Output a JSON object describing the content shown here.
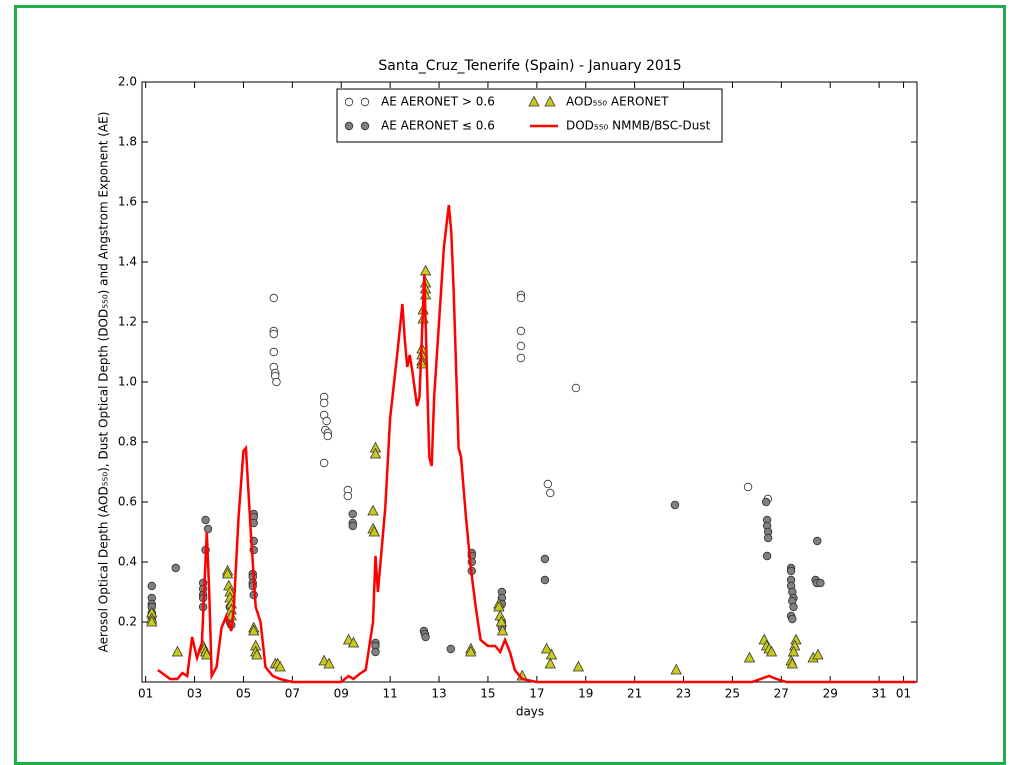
{
  "chart_data": {
    "type": "scatter",
    "title": "Santa_Cruz_Tenerife (Spain) - January 2015",
    "x_label": "days",
    "y_label": "Aerosol Optical Depth (AOD₅₅₀), Dust Optical Depth (DOD₅₅₀) and Angstrom Exponent (AE)",
    "xlim": [
      0.85,
      32.55
    ],
    "ylim": [
      0,
      2
    ],
    "xticks": [
      {
        "value": 1,
        "label": "01"
      },
      {
        "value": 3,
        "label": "03"
      },
      {
        "value": 5,
        "label": "05"
      },
      {
        "value": 7,
        "label": "07"
      },
      {
        "value": 9,
        "label": "09"
      },
      11,
      13,
      15,
      17,
      19,
      21,
      23,
      25,
      27,
      29,
      31,
      {
        "value": 32,
        "label": "01"
      }
    ],
    "yticks": [
      0.2,
      0.4,
      0.6,
      0.8,
      {
        "value": 1,
        "label": "1.0"
      },
      1.2,
      1.4,
      1.6,
      1.8,
      {
        "value": 2,
        "label": "2.0"
      }
    ],
    "legend": "upper center",
    "series": [
      {
        "name": "AE AERONET  > 0.6",
        "type": "scatter",
        "marker": "circle",
        "color": "#ffffff",
        "x": [
          6.24,
          6.24,
          6.24,
          6.24,
          6.24,
          6.3,
          6.3,
          6.35,
          8.3,
          8.3,
          8.3,
          8.4,
          8.35,
          8.45,
          8.45,
          8.3,
          9.27,
          9.27,
          16.35,
          16.35,
          16.35,
          16.35,
          16.35,
          17.45,
          17.55,
          18.6,
          25.64,
          26.45
        ],
        "values": [
          1.28,
          1.17,
          1.16,
          1.1,
          1.05,
          1.03,
          1.02,
          1.0,
          0.95,
          0.93,
          0.89,
          0.87,
          0.84,
          0.83,
          0.82,
          0.73,
          0.64,
          0.62,
          1.29,
          1.28,
          1.17,
          1.12,
          1.08,
          0.66,
          0.63,
          0.98,
          0.65,
          0.61
        ]
      },
      {
        "name": "AE AERONET  ≤ 0.6",
        "type": "scatter",
        "marker": "circle",
        "color": "#808080",
        "x": [
          1.25,
          1.25,
          1.25,
          1.25,
          1.25,
          1.25,
          1.25,
          2.23,
          3.35,
          3.35,
          3.35,
          3.35,
          3.35,
          3.45,
          3.45,
          3.55,
          4.44,
          4.44,
          4.5,
          5.42,
          5.42,
          5.42,
          5.42,
          5.42,
          5.38,
          5.38,
          5.38,
          5.38,
          5.42,
          9.47,
          9.47,
          9.47,
          10.4,
          10.4,
          10.4,
          12.38,
          12.42,
          12.45,
          13.48,
          14.34,
          14.34,
          14.34,
          14.34,
          15.57,
          15.57,
          15.57,
          15.57,
          15.57,
          17.33,
          17.33,
          22.65,
          26.38,
          26.42,
          26.42,
          26.46,
          26.46,
          26.42,
          27.4,
          27.4,
          27.4,
          27.4,
          27.45,
          27.5,
          27.45,
          27.5,
          27.4,
          27.45,
          28.47,
          28.4,
          28.45,
          28.6
        ],
        "values": [
          0.32,
          0.28,
          0.26,
          0.25,
          0.23,
          0.22,
          0.21,
          0.38,
          0.33,
          0.31,
          0.29,
          0.28,
          0.25,
          0.54,
          0.44,
          0.51,
          0.25,
          0.2,
          0.19,
          0.56,
          0.55,
          0.53,
          0.47,
          0.44,
          0.36,
          0.35,
          0.33,
          0.32,
          0.29,
          0.56,
          0.53,
          0.52,
          0.13,
          0.12,
          0.1,
          0.17,
          0.16,
          0.15,
          0.11,
          0.43,
          0.42,
          0.4,
          0.37,
          0.3,
          0.28,
          0.26,
          0.2,
          0.18,
          0.41,
          0.34,
          0.59,
          0.6,
          0.54,
          0.52,
          0.5,
          0.48,
          0.42,
          0.38,
          0.37,
          0.34,
          0.32,
          0.3,
          0.28,
          0.27,
          0.25,
          0.22,
          0.21,
          0.47,
          0.34,
          0.33,
          0.33
        ]
      },
      {
        "name": "AOD₅₅₀ AERONET",
        "type": "scatter",
        "marker": "triangle",
        "color": "#c8c81e",
        "x": [
          1.25,
          1.25,
          1.25,
          2.3,
          3.35,
          3.4,
          3.45,
          3.5,
          4.35,
          4.35,
          4.4,
          4.45,
          4.45,
          4.5,
          4.5,
          4.5,
          5.42,
          5.42,
          5.5,
          5.5,
          5.55,
          6.3,
          6.4,
          6.5,
          8.3,
          8.5,
          9.3,
          9.5,
          10.4,
          10.4,
          10.3,
          10.3,
          10.35,
          12.45,
          12.45,
          12.45,
          12.45,
          12.35,
          12.35,
          12.3,
          12.3,
          12.3,
          12.3,
          14.3,
          14.3,
          15.45,
          15.45,
          15.5,
          15.55,
          15.6,
          16.4,
          17.4,
          17.6,
          17.55,
          18.7,
          22.7,
          25.7,
          26.3,
          26.4,
          26.5,
          26.6,
          27.6,
          27.55,
          27.5,
          27.4,
          27.45,
          28.3,
          28.5
        ],
        "values": [
          0.23,
          0.21,
          0.2,
          0.1,
          0.12,
          0.11,
          0.1,
          0.09,
          0.37,
          0.36,
          0.32,
          0.3,
          0.28,
          0.26,
          0.24,
          0.22,
          0.18,
          0.17,
          0.12,
          0.1,
          0.09,
          0.06,
          0.06,
          0.05,
          0.07,
          0.06,
          0.14,
          0.13,
          0.78,
          0.76,
          0.57,
          0.51,
          0.5,
          1.37,
          1.33,
          1.31,
          1.29,
          1.24,
          1.21,
          1.11,
          1.09,
          1.07,
          1.06,
          0.11,
          0.1,
          0.26,
          0.25,
          0.22,
          0.2,
          0.17,
          0.02,
          0.11,
          0.09,
          0.06,
          0.05,
          0.04,
          0.08,
          0.14,
          0.12,
          0.11,
          0.1,
          0.14,
          0.12,
          0.1,
          0.07,
          0.06,
          0.08,
          0.09
        ]
      },
      {
        "name": "DOD₅₅₀ NMMB/BSC-Dust",
        "type": "line",
        "color": "#ff0000",
        "x": [
          1.5,
          2.0,
          2.3,
          2.5,
          2.7,
          2.9,
          3.1,
          3.3,
          3.5,
          3.6,
          3.7,
          3.9,
          4.1,
          4.3,
          4.5,
          4.6,
          4.8,
          5.0,
          5.1,
          5.3,
          5.5,
          5.7,
          5.9,
          6.2,
          6.5,
          7,
          8,
          9,
          9.3,
          9.5,
          9.8,
          10.0,
          10.3,
          10.4,
          10.5,
          10.8,
          11.0,
          11.3,
          11.5,
          11.6,
          11.7,
          11.8,
          11.9,
          12.1,
          12.2,
          12.4,
          12.5,
          12.6,
          12.7,
          12.8,
          13.0,
          13.2,
          13.4,
          13.5,
          13.6,
          13.8,
          13.9,
          14.1,
          14.3,
          14.5,
          14.7,
          15.0,
          15.3,
          15.5,
          15.7,
          15.9,
          16.1,
          16.4,
          17,
          25.8,
          26.5,
          26.8,
          27.2,
          32.5
        ],
        "values": [
          0.04,
          0.01,
          0.01,
          0.03,
          0.02,
          0.15,
          0.08,
          0.13,
          0.5,
          0.3,
          0.02,
          0.05,
          0.18,
          0.22,
          0.17,
          0.24,
          0.55,
          0.77,
          0.78,
          0.5,
          0.25,
          0.2,
          0.05,
          0.02,
          0.01,
          0,
          0,
          0,
          0.02,
          0.01,
          0.03,
          0.04,
          0.2,
          0.42,
          0.3,
          0.58,
          0.88,
          1.1,
          1.26,
          1.14,
          1.05,
          1.09,
          1.04,
          0.92,
          0.95,
          1.36,
          1.05,
          0.75,
          0.72,
          0.95,
          1.2,
          1.45,
          1.59,
          1.5,
          1.3,
          0.78,
          0.75,
          0.55,
          0.38,
          0.25,
          0.14,
          0.12,
          0.12,
          0.1,
          0.14,
          0.1,
          0.04,
          0.01,
          0,
          0,
          0.02,
          0.01,
          0,
          0
        ]
      }
    ]
  }
}
